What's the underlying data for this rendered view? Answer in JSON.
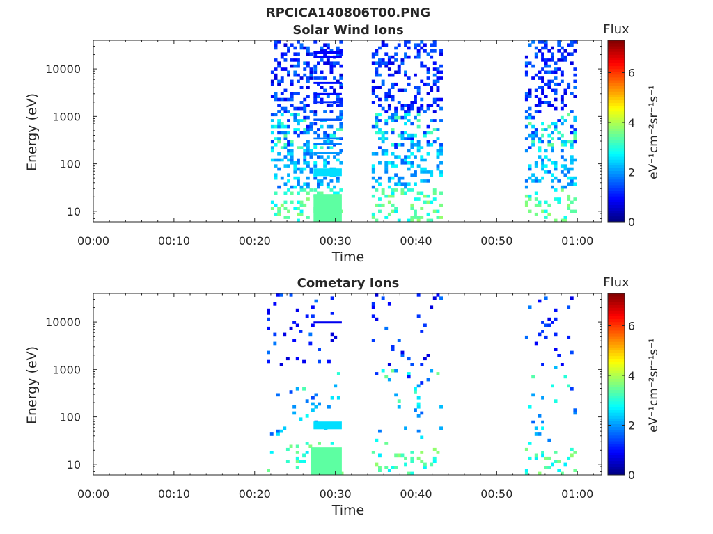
{
  "figure": {
    "title": "RPCICA140806T00.PNG"
  },
  "chart_data": [
    {
      "type": "heatmap",
      "title": "Solar Wind Ions",
      "xlabel": "Time",
      "ylabel": "Energy (eV)",
      "x_ticks": [
        "00:00",
        "00:10",
        "00:20",
        "00:30",
        "00:40",
        "00:50",
        "01:00"
      ],
      "y_ticks": [
        "10",
        "100",
        "1000",
        "10000"
      ],
      "y_scale": "log",
      "ylim": [
        6,
        40000
      ],
      "colorbar": {
        "title": "Flux",
        "label": "eV⁻¹cm⁻²sr⁻¹s⁻¹",
        "ticks": [
          "0",
          "2",
          "4",
          "6"
        ],
        "range": [
          0,
          7.3
        ],
        "colormap": "jet"
      },
      "activity_intervals_min": [
        [
          22,
          27
        ],
        [
          27.3,
          30.8
        ],
        [
          34.5,
          43
        ],
        [
          53.5,
          59.8
        ]
      ],
      "bands": [
        {
          "t0": 27.3,
          "t1": 30.8,
          "e0": 6,
          "e1": 23,
          "value": 3.4
        },
        {
          "t0": 27.3,
          "t1": 30.8,
          "e0": 55,
          "e1": 80,
          "value": 2.5
        },
        {
          "t0": 27.3,
          "t1": 30.8,
          "e0": 160,
          "e1": 175,
          "value": 2.0
        },
        {
          "t0": 27.3,
          "t1": 30.8,
          "e0": 250,
          "e1": 275,
          "value": 1.8
        },
        {
          "t0": 27.3,
          "t1": 30.8,
          "e0": 330,
          "e1": 360,
          "value": 1.8
        },
        {
          "t0": 27.3,
          "t1": 30.8,
          "e0": 800,
          "e1": 900,
          "value": 1.5
        },
        {
          "t0": 27.3,
          "t1": 30.8,
          "e0": 1900,
          "e1": 2100,
          "value": 1.2
        },
        {
          "t0": 27.3,
          "t1": 30.8,
          "e0": 2800,
          "e1": 3100,
          "value": 1.0
        },
        {
          "t0": 27.3,
          "t1": 30.8,
          "e0": 4800,
          "e1": 5300,
          "value": 1.0
        },
        {
          "t0": 27.3,
          "t1": 30.8,
          "e0": 17000,
          "e1": 19000,
          "value": 0.9
        },
        {
          "t0": 27.3,
          "t1": 30.8,
          "e0": 21000,
          "e1": 23500,
          "value": 0.9
        }
      ],
      "grid": false
    },
    {
      "type": "heatmap",
      "title": "Cometary Ions",
      "xlabel": "Time",
      "ylabel": "Energy (eV)",
      "x_ticks": [
        "00:00",
        "00:10",
        "00:20",
        "00:30",
        "00:40",
        "00:50",
        "01:00"
      ],
      "y_ticks": [
        "10",
        "100",
        "1000",
        "10000"
      ],
      "y_scale": "log",
      "ylim": [
        6,
        40000
      ],
      "colorbar": {
        "title": "Flux",
        "label": "eV⁻¹cm⁻²sr⁻¹s⁻¹",
        "ticks": [
          "0",
          "2",
          "4",
          "6"
        ],
        "range": [
          0,
          7.3
        ],
        "colormap": "jet"
      },
      "activity_intervals_min": [
        [
          21.5,
          27
        ],
        [
          27,
          30.8
        ],
        [
          34.5,
          43
        ],
        [
          53.5,
          59.8
        ]
      ],
      "bands": [
        {
          "t0": 27,
          "t1": 30.8,
          "e0": 6,
          "e1": 23,
          "value": 3.4
        },
        {
          "t0": 27.3,
          "t1": 30.8,
          "e0": 55,
          "e1": 80,
          "value": 2.5
        },
        {
          "t0": 27.3,
          "t1": 30.8,
          "e0": 9300,
          "e1": 10300,
          "value": 0.8
        }
      ],
      "grid": false
    }
  ]
}
